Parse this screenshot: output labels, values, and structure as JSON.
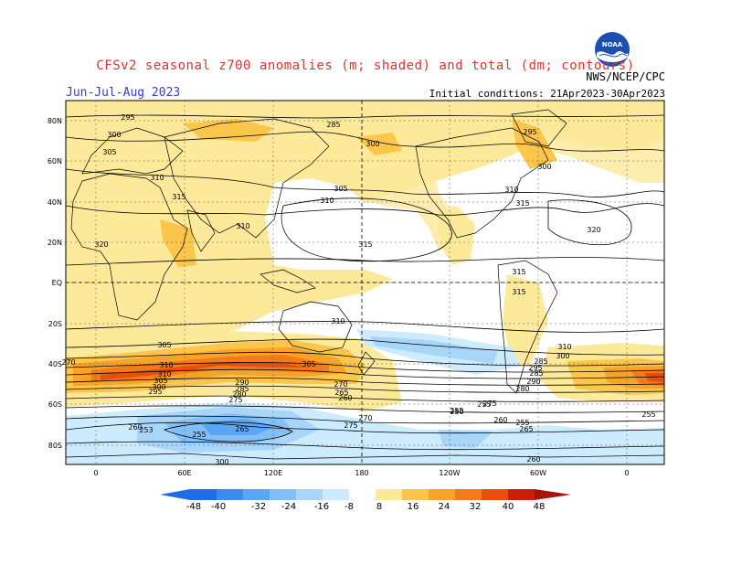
{
  "header": {
    "title": "CFSv2 seasonal z700 anomalies (m; shaded) and total (dm; contours)",
    "season": "Jun-Jul-Aug 2023",
    "initial_conditions": "Initial conditions: 21Apr2023-30Apr2023",
    "agency": "NWS/NCEP/CPC",
    "logo_text": "NOAA"
  },
  "colors": {
    "neg_48": "#1e6ee8",
    "neg_40": "#3c8cf0",
    "neg_32": "#5aa5f5",
    "neg_24": "#82bff8",
    "neg_16": "#a8d6fb",
    "neg_8": "#ccebfc",
    "pos_8": "#fde99a",
    "pos_16": "#fbc64a",
    "pos_24": "#f7a328",
    "pos_32": "#f57a18",
    "pos_40": "#e84e10",
    "pos_48": "#c91e0a"
  },
  "axes": {
    "lat_ticks": [
      "80N",
      "60N",
      "40N",
      "20N",
      "EQ",
      "20S",
      "40S",
      "60S",
      "80S"
    ],
    "lon_ticks": [
      "0",
      "60E",
      "120E",
      "180",
      "120W",
      "60W",
      "0"
    ]
  },
  "colorbar": {
    "labels": [
      "-48",
      "-40",
      "-32",
      "-24",
      "-16",
      "-8",
      "8",
      "16",
      "24",
      "32",
      "40",
      "48"
    ]
  },
  "contour_labels": [
    "295",
    "285",
    "300",
    "295",
    "300",
    "300",
    "305",
    "310",
    "305",
    "310",
    "310",
    "315",
    "310",
    "320",
    "315",
    "320",
    "315",
    "315",
    "310",
    "315",
    "310",
    "305",
    "300",
    "310",
    "305",
    "295",
    "290",
    "285",
    "310",
    "305",
    "300",
    "295",
    "290",
    "285",
    "280",
    "275",
    "270",
    "265",
    "260",
    "255",
    "250",
    "260",
    "255",
    "265",
    "255",
    "253",
    "260",
    "275",
    "270",
    "265",
    "260",
    "255",
    "285",
    "280",
    "275",
    "270",
    "255",
    "300"
  ]
}
